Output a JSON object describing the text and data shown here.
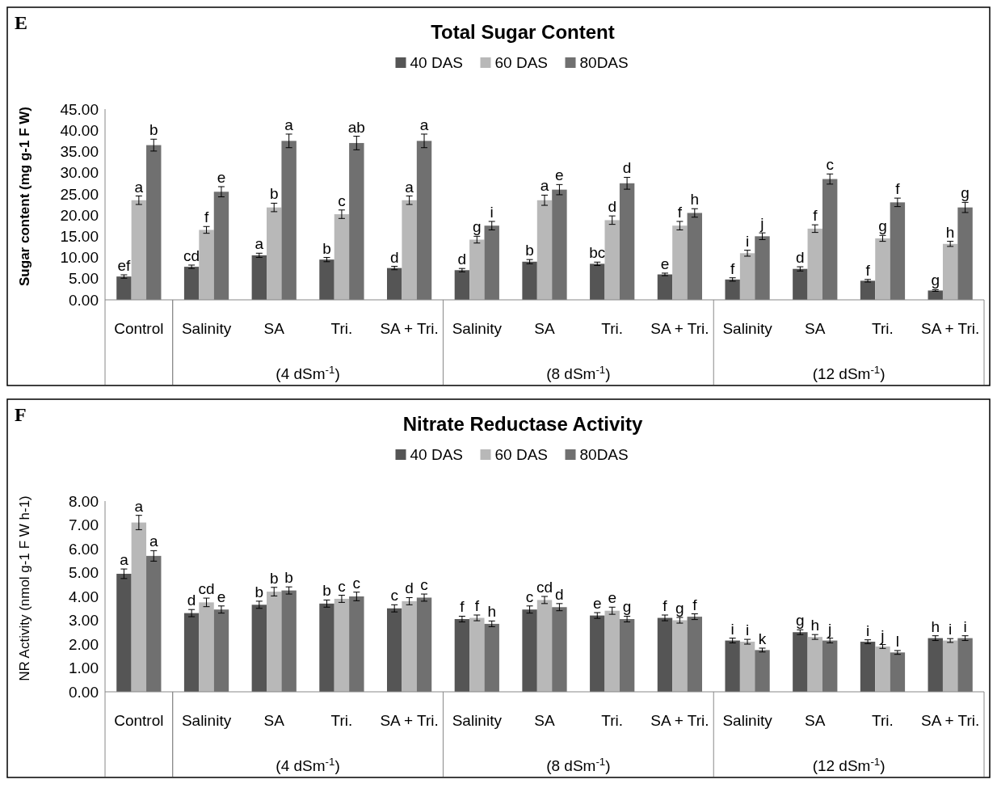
{
  "chart_data": [
    {
      "type": "bar",
      "title": "Total Sugar Content",
      "ylabel": "Sugar content (mg g-1 F W)",
      "legend": "top",
      "grid": false,
      "annotations": [
        "E",
        "(4 dSm$^{-1}$)",
        "(8 dSm$^{-1}$)",
        "(12 dSm$^{-1}$)"
      ],
      "categories": [
        "Control",
        "Salinity",
        "SA",
        "Tri.",
        "SA + Tri.",
        "Salinity",
        "SA",
        "Tri.",
        "SA + Tri.",
        "Salinity",
        "SA",
        "Tri.",
        "SA + Tri."
      ],
      "ylim": [
        0,
        45
      ],
      "yticks": [
        {
          "value": 0,
          "label": "0.00"
        },
        {
          "value": 5,
          "label": "5.00"
        },
        {
          "value": 10,
          "label": "10.00"
        },
        {
          "value": 15,
          "label": "15.00"
        },
        {
          "value": 20,
          "label": "20.00"
        },
        {
          "value": 25,
          "label": "25.00"
        },
        {
          "value": 30,
          "label": "30.00"
        },
        {
          "value": 35,
          "label": "35.00"
        },
        {
          "value": 40,
          "label": "40.00"
        },
        {
          "value": 45,
          "label": "45.00"
        }
      ],
      "series": [
        {
          "name": "40 DAS",
          "color": "#555555",
          "values": [
            5.5,
            7.8,
            10.5,
            9.5,
            7.5,
            7.0,
            9.0,
            8.5,
            6.0,
            4.8,
            7.3,
            4.5,
            2.2
          ],
          "errors": [
            0.4,
            0.4,
            0.5,
            0.5,
            0.4,
            0.4,
            0.5,
            0.4,
            0.3,
            0.4,
            0.5,
            0.3,
            0.2
          ],
          "value_labels": [
            "ef",
            "cd",
            "a",
            "b",
            "d",
            "d",
            "b",
            "bc",
            "e",
            "f",
            "d",
            "f",
            "g"
          ]
        },
        {
          "name": "60 DAS",
          "color": "#b8b8b8",
          "values": [
            23.5,
            16.5,
            21.8,
            20.2,
            23.5,
            14.2,
            23.5,
            18.8,
            17.5,
            11.0,
            16.8,
            14.5,
            13.2
          ],
          "errors": [
            1.0,
            0.8,
            1.0,
            1.0,
            1.0,
            0.8,
            1.2,
            1.0,
            1.0,
            0.7,
            0.9,
            0.7,
            0.6
          ],
          "value_labels": [
            "a",
            "f",
            "b",
            "c",
            "a",
            "g",
            "a",
            "d",
            "f",
            "i",
            "f",
            "g",
            "h"
          ]
        },
        {
          "name": "80DAS",
          "color": "#707070",
          "values": [
            36.5,
            25.5,
            37.5,
            37.0,
            37.5,
            17.5,
            26.0,
            27.5,
            20.5,
            15.0,
            28.5,
            23.0,
            21.8
          ],
          "errors": [
            1.4,
            1.2,
            1.6,
            1.6,
            1.6,
            1.0,
            1.2,
            1.4,
            1.0,
            0.8,
            1.2,
            1.0,
            1.2
          ],
          "value_labels": [
            "b",
            "e",
            "a",
            "ab",
            "a",
            "i",
            "e",
            "d",
            "h",
            "j",
            "c",
            "f",
            "g"
          ]
        }
      ]
    },
    {
      "type": "bar",
      "title": "Nitrate Reductase Activity",
      "ylabel": "NR Activity  (nmol g-1 F W h-1)",
      "legend": "top",
      "grid": false,
      "annotations": [
        "F",
        "(4 dSm$^{-1}$)",
        "(8 dSm$^{-1}$)",
        "(12 dSm$^{-1}$)"
      ],
      "categories": [
        "Control",
        "Salinity",
        "SA",
        "Tri.",
        "SA + Tri.",
        "Salinity",
        "SA",
        "Tri.",
        "SA + Tri.",
        "Salinity",
        "SA",
        "Tri.",
        "SA + Tri."
      ],
      "ylim": [
        0,
        8
      ],
      "yticks": [
        {
          "value": 0,
          "label": "0.00"
        },
        {
          "value": 1,
          "label": "1.00"
        },
        {
          "value": 2,
          "label": "2.00"
        },
        {
          "value": 3,
          "label": "3.00"
        },
        {
          "value": 4,
          "label": "4.00"
        },
        {
          "value": 5,
          "label": "5.00"
        },
        {
          "value": 6,
          "label": "6.00"
        },
        {
          "value": 7,
          "label": "7.00"
        },
        {
          "value": 8,
          "label": "8.00"
        }
      ],
      "series": [
        {
          "name": "40 DAS",
          "color": "#555555",
          "values": [
            4.95,
            3.3,
            3.65,
            3.7,
            3.5,
            3.05,
            3.45,
            3.2,
            3.1,
            2.15,
            2.5,
            2.1,
            2.25
          ],
          "errors": [
            0.2,
            0.15,
            0.15,
            0.15,
            0.15,
            0.12,
            0.15,
            0.12,
            0.12,
            0.1,
            0.1,
            0.08,
            0.1
          ],
          "value_labels": [
            "a",
            "d",
            "b",
            "b",
            "c",
            "f",
            "c",
            "e",
            "f",
            "i",
            "g",
            "i",
            "h"
          ]
        },
        {
          "name": "60 DAS",
          "color": "#b8b8b8",
          "values": [
            7.1,
            3.75,
            4.2,
            3.9,
            3.8,
            3.1,
            3.85,
            3.4,
            3.0,
            2.1,
            2.3,
            1.9,
            2.15
          ],
          "errors": [
            0.3,
            0.18,
            0.18,
            0.15,
            0.15,
            0.12,
            0.15,
            0.15,
            0.12,
            0.1,
            0.1,
            0.08,
            0.08
          ],
          "value_labels": [
            "a",
            "cd",
            "b",
            "c",
            "d",
            "f",
            "cd",
            "e",
            "g",
            "i",
            "h",
            "j",
            "i"
          ]
        },
        {
          "name": "80DAS",
          "color": "#707070",
          "values": [
            5.7,
            3.45,
            4.25,
            4.0,
            3.95,
            2.85,
            3.55,
            3.05,
            3.15,
            1.75,
            2.15,
            1.65,
            2.25
          ],
          "errors": [
            0.22,
            0.15,
            0.15,
            0.18,
            0.15,
            0.12,
            0.15,
            0.12,
            0.12,
            0.08,
            0.1,
            0.08,
            0.1
          ],
          "value_labels": [
            "a",
            "e",
            "b",
            "c",
            "c",
            "h",
            "d",
            "g",
            "f",
            "k",
            "j",
            "l",
            "i"
          ]
        }
      ]
    }
  ]
}
